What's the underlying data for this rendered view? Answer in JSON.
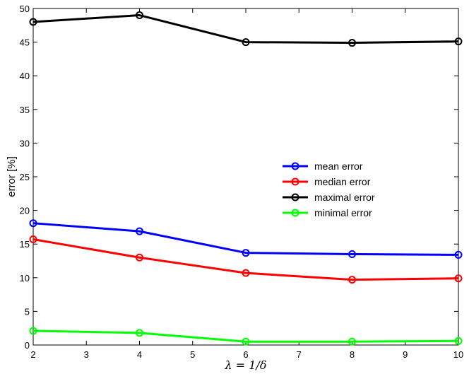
{
  "chart_data": {
    "type": "line",
    "x": [
      2,
      4,
      6,
      8,
      10
    ],
    "series": [
      {
        "name": "mean error",
        "values": [
          18.1,
          16.9,
          13.7,
          13.5,
          13.4
        ],
        "color": "#0000ff"
      },
      {
        "name": "median error",
        "values": [
          15.7,
          13.0,
          10.7,
          9.7,
          9.9
        ],
        "color": "#ff0000"
      },
      {
        "name": "maximal error",
        "values": [
          48.0,
          49.0,
          45.0,
          44.9,
          45.1
        ],
        "color": "#000000"
      },
      {
        "name": "minimal error",
        "values": [
          2.1,
          1.8,
          0.5,
          0.5,
          0.6
        ],
        "color": "#00ff00"
      }
    ],
    "title": "",
    "xlabel": "λ = 1/δ",
    "ylabel": "error [%]",
    "xlim": [
      2,
      10
    ],
    "ylim": [
      0,
      50
    ],
    "xticks": [
      2,
      3,
      4,
      5,
      6,
      7,
      8,
      9,
      10
    ],
    "yticks": [
      0,
      5,
      10,
      15,
      20,
      25,
      30,
      35,
      40,
      45,
      50
    ],
    "grid": false,
    "legend_position": "right-center",
    "marker": "circle"
  }
}
